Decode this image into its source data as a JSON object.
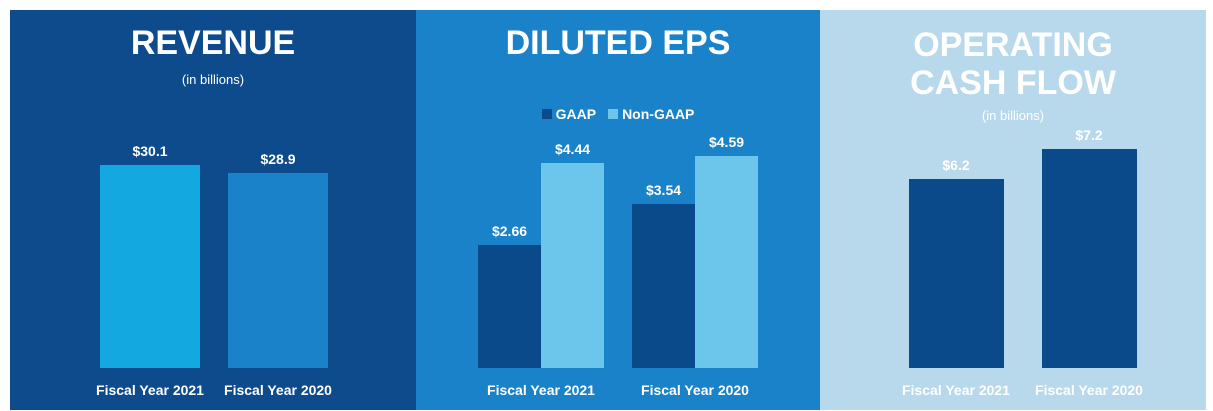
{
  "chart_data": [
    {
      "type": "bar",
      "title": "REVENUE",
      "subtitle": "(in billions)",
      "categories": [
        "Fiscal Year 2021",
        "Fiscal Year 2020"
      ],
      "values": [
        30.1,
        28.9
      ],
      "value_labels": [
        "$30.1",
        "$28.9"
      ],
      "colors": [
        "#14a8e0",
        "#1a82c8"
      ]
    },
    {
      "type": "grouped_bar",
      "title": "DILUTED EPS",
      "categories": [
        "Fiscal Year 2021",
        "Fiscal Year 2020"
      ],
      "series": [
        {
          "name": "GAAP",
          "color": "#0b4a8a",
          "values": [
            2.66,
            3.54
          ],
          "value_labels": [
            "$2.66",
            "$3.54"
          ]
        },
        {
          "name": "Non-GAAP",
          "color": "#6cc5ea",
          "values": [
            4.44,
            4.59
          ],
          "value_labels": [
            "$4.44",
            "$4.59"
          ]
        }
      ]
    },
    {
      "type": "bar",
      "title": "OPERATING CASH FLOW",
      "subtitle": "(in billions)",
      "categories": [
        "Fiscal Year 2021",
        "Fiscal Year 2020"
      ],
      "values": [
        6.2,
        7.2
      ],
      "value_labels": [
        "$6.2",
        "$7.2"
      ],
      "colors": [
        "#0b4a8a",
        "#0b4a8a"
      ]
    }
  ]
}
